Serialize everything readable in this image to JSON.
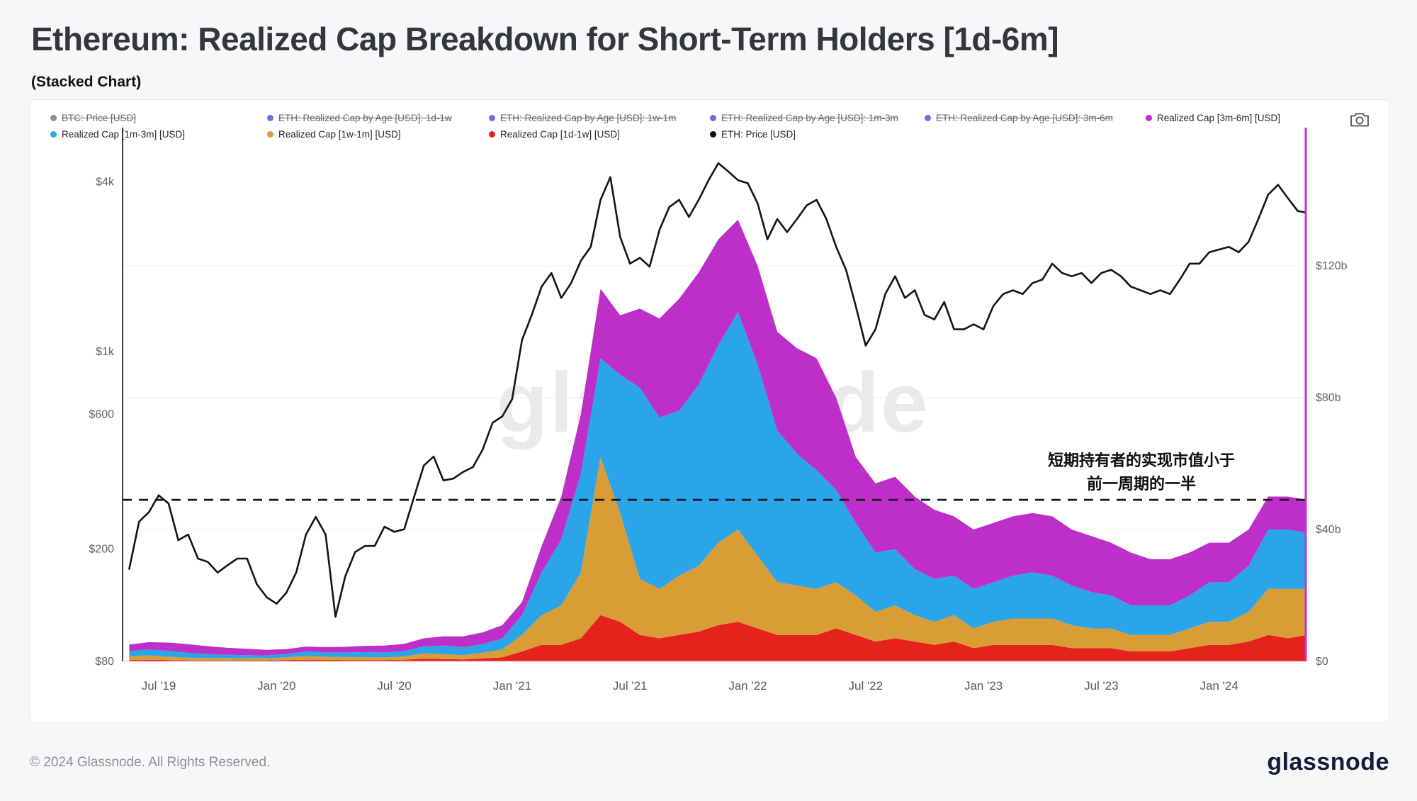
{
  "page": {
    "title": "Ethereum: Realized Cap Breakdown for Short-Term Holders [1d-6m]",
    "subtitle": "(Stacked Chart)"
  },
  "watermark": "glassnode",
  "annotation": {
    "line1": "短期持有者的实现市值小于",
    "line2": "前一周期的一半"
  },
  "footer": {
    "copyright": "© 2024 Glassnode. All Rights Reserved.",
    "logo": "glassnode"
  },
  "legend": {
    "rows": [
      [
        {
          "label": "BTC: Price [USD]",
          "color": "#8a9096",
          "struck": true
        },
        {
          "label": "ETH: Realized Cap by Age [USD]: 1d-1w",
          "color": "#6272e2",
          "struck": true
        },
        {
          "label": "ETH: Realized Cap by Age [USD]: 1w-1m",
          "color": "#6272e2",
          "struck": true
        },
        {
          "label": "ETH: Realized Cap by Age [USD]: 1m-3m",
          "color": "#6272e2",
          "struck": true
        },
        {
          "label": "ETH: Realized Cap by Age [USD]: 3m-6m",
          "color": "#6272e2",
          "struck": true
        },
        {
          "label": "Realized Cap [3m-6m] [USD]",
          "color": "#bd2fc8",
          "struck": false
        }
      ],
      [
        {
          "label": "Realized Cap [1m-3m] [USD]",
          "color": "#2aa5ea",
          "struck": false
        },
        {
          "label": "Realized Cap [1w-1m] [USD]",
          "color": "#dca03a",
          "struck": false
        },
        {
          "label": "Realized Cap [1d-1w] [USD]",
          "color": "#e52420",
          "struck": false
        },
        {
          "label": "ETH: Price [USD]",
          "color": "#111113",
          "struck": false
        }
      ]
    ]
  },
  "chart_data": {
    "type": "area",
    "stacked": true,
    "x_start": 2019.375,
    "x_step": 0.0833333,
    "x_unit": "decimal year",
    "right_unit": "billion USD",
    "series": [
      {
        "name": "Realized Cap [1d-1w] [USD]",
        "color": "#e6221c",
        "axis": "right",
        "values": [
          0.4,
          0.5,
          0.4,
          0.3,
          0.3,
          0.3,
          0.3,
          0.3,
          0.4,
          0.5,
          0.5,
          0.4,
          0.4,
          0.4,
          0.5,
          0.8,
          0.7,
          0.6,
          0.9,
          1.2,
          3,
          5,
          5,
          7,
          14,
          12,
          8,
          7,
          8,
          9,
          11,
          12,
          10,
          8,
          8,
          8,
          10,
          8,
          6,
          7,
          6,
          5,
          6,
          4,
          5,
          5,
          5,
          5,
          4,
          4,
          4,
          3,
          3,
          3,
          4,
          5,
          5,
          6,
          8,
          7,
          8
        ]
      },
      {
        "name": "Realized Cap [1w-1m] [USD]",
        "color": "#d99d36",
        "axis": "right",
        "values": [
          1.2,
          1.3,
          1.0,
          0.8,
          0.7,
          0.7,
          0.6,
          0.6,
          0.8,
          1.1,
          0.9,
          0.9,
          0.9,
          0.8,
          1.0,
          1.6,
          1.5,
          1.3,
          1.7,
          2.4,
          5,
          9,
          12,
          20,
          48,
          33,
          17,
          15,
          18,
          20,
          25,
          28,
          22,
          16,
          15,
          14,
          14,
          12,
          9,
          10,
          8,
          7,
          8,
          6,
          7,
          8,
          8,
          8,
          7,
          6,
          6,
          5,
          5,
          5,
          6,
          7,
          7,
          9,
          14,
          15,
          14
        ]
      },
      {
        "name": "Realized Cap [1m-3m] [USD]",
        "color": "#2aa5ea",
        "axis": "right",
        "values": [
          1.5,
          1.8,
          1.8,
          1.5,
          1.2,
          1.0,
          1.0,
          0.9,
          1.0,
          1.4,
          1.3,
          1.4,
          1.5,
          1.5,
          1.6,
          2.2,
          2.6,
          2.4,
          2.6,
          3.4,
          6,
          13,
          20,
          30,
          30,
          42,
          58,
          52,
          50,
          55,
          60,
          66,
          58,
          46,
          40,
          36,
          28,
          22,
          18,
          17,
          14,
          13,
          12,
          12,
          12,
          13,
          14,
          13,
          12,
          11,
          10,
          9,
          9,
          9,
          10,
          12,
          12,
          14,
          18,
          18,
          17
        ]
      },
      {
        "name": "Realized Cap [3m-6m] [USD]",
        "color": "#bd2fc8",
        "axis": "right",
        "values": [
          2.0,
          2.2,
          2.5,
          2.6,
          2.4,
          2.1,
          1.9,
          1.7,
          1.5,
          1.5,
          1.6,
          1.7,
          1.9,
          2.1,
          2.2,
          2.4,
          2.8,
          3.3,
          3.6,
          4.0,
          4,
          8,
          13,
          18,
          21,
          18,
          24,
          30,
          34,
          34,
          32,
          28,
          30,
          30,
          32,
          34,
          28,
          20,
          21,
          22,
          22,
          21,
          18,
          18,
          18,
          18,
          18,
          18,
          17,
          17,
          16,
          16,
          14,
          14,
          13,
          12,
          12,
          11,
          10,
          10,
          10
        ]
      }
    ],
    "price_series": {
      "name": "ETH: Price [USD]",
      "color": "#131416",
      "axis": "left",
      "x_start": 2019.375,
      "x_step": 0.0416667,
      "values": [
        170,
        250,
        270,
        310,
        290,
        215,
        225,
        185,
        180,
        165,
        175,
        185,
        185,
        150,
        135,
        128,
        140,
        165,
        225,
        260,
        225,
        115,
        160,
        195,
        205,
        205,
        240,
        230,
        235,
        305,
        395,
        425,
        350,
        355,
        375,
        390,
        450,
        560,
        590,
        680,
        1100,
        1350,
        1700,
        1900,
        1550,
        1750,
        2100,
        2350,
        3450,
        4150,
        2550,
        2050,
        2150,
        2000,
        2700,
        3250,
        3450,
        3000,
        3450,
        4050,
        4650,
        4350,
        4050,
        3950,
        3350,
        2500,
        2950,
        2650,
        2950,
        3300,
        3450,
        2950,
        2350,
        1950,
        1450,
        1050,
        1200,
        1600,
        1850,
        1550,
        1650,
        1350,
        1300,
        1500,
        1200,
        1200,
        1250,
        1200,
        1450,
        1600,
        1650,
        1600,
        1750,
        1800,
        2050,
        1900,
        1850,
        1900,
        1750,
        1900,
        1950,
        1850,
        1700,
        1650,
        1600,
        1650,
        1600,
        1800,
        2050,
        2050,
        2250,
        2300,
        2350,
        2250,
        2450,
        2950,
        3600,
        3900,
        3500,
        3150,
        3100,
        3250
      ]
    },
    "left_axis": {
      "scale": "log",
      "unit": "USD",
      "ticks": [
        {
          "label": "$4k",
          "value": 4000
        },
        {
          "label": "$1k",
          "value": 1000
        },
        {
          "label": "$600",
          "value": 600
        },
        {
          "label": "$200",
          "value": 200
        },
        {
          "label": "$80",
          "value": 80
        }
      ]
    },
    "right_axis": {
      "scale": "linear",
      "unit": "billion USD",
      "ticks": [
        {
          "label": "$120b",
          "value": 120
        },
        {
          "label": "$80b",
          "value": 80
        },
        {
          "label": "$40b",
          "value": 40
        },
        {
          "label": "$0",
          "value": 0
        }
      ]
    },
    "x_axis": {
      "ticks": [
        {
          "label": "Jul '19",
          "t": 2019.5
        },
        {
          "label": "Jan '20",
          "t": 2020.0
        },
        {
          "label": "Jul '20",
          "t": 2020.5
        },
        {
          "label": "Jan '21",
          "t": 2021.0
        },
        {
          "label": "Jul '21",
          "t": 2021.5
        },
        {
          "label": "Jan '22",
          "t": 2022.0
        },
        {
          "label": "Jul '22",
          "t": 2022.5
        },
        {
          "label": "Jan '23",
          "t": 2023.0
        },
        {
          "label": "Jul '23",
          "t": 2023.5
        },
        {
          "label": "Jan '24",
          "t": 2024.0
        }
      ]
    },
    "dashed_line": {
      "value_billion": 49,
      "color": "#15161a",
      "style": "dashed"
    }
  }
}
